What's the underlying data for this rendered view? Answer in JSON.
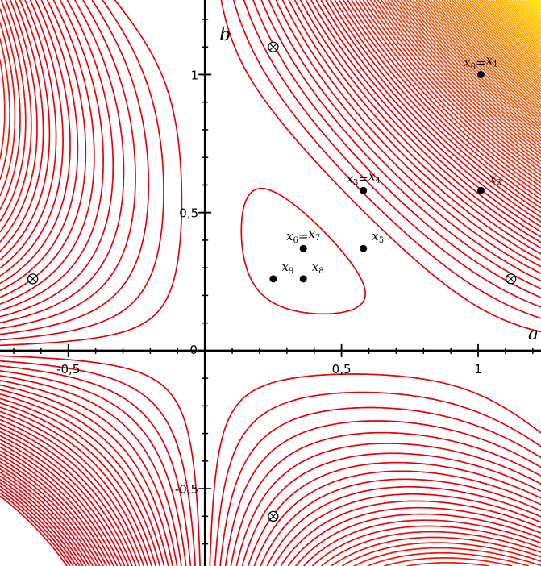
{
  "chart_data": {
    "type": "contour",
    "function": "f(a,b) = a^2 b + a b^2 - a b",
    "xlabel": "a",
    "ylabel": "b",
    "xlim": [
      -0.75,
      1.23
    ],
    "ylim": [
      -0.78,
      1.27
    ],
    "origin_label": "0",
    "x_ticks": [
      {
        "value": -0.5,
        "label": "-0,5"
      },
      {
        "value": 0.5,
        "label": "0,5"
      },
      {
        "value": 1,
        "label": "1"
      }
    ],
    "y_ticks": [
      {
        "value": -0.5,
        "label": "-0,5"
      },
      {
        "value": 0.5,
        "label": "0,5"
      },
      {
        "value": 1,
        "label": "1"
      }
    ],
    "contour_levels": {
      "start": -0.9,
      "end": 2.5,
      "step": 0.025
    },
    "colors": {
      "low": "#e8000b",
      "mid": "#ff8c00",
      "high": "#ffff00"
    },
    "points": [
      {
        "id": "x0x1",
        "a": 1.01,
        "b": 1.0,
        "label": "x0=x1",
        "parts": [
          "x",
          "0",
          "=",
          "x",
          "1"
        ]
      },
      {
        "id": "x2",
        "a": 1.01,
        "b": 0.58,
        "label": "x2",
        "parts": [
          "x",
          "2"
        ]
      },
      {
        "id": "x3x4",
        "a": 0.58,
        "b": 0.58,
        "label": "x3=x4",
        "parts": [
          "x",
          "3",
          "=",
          "x",
          "4"
        ]
      },
      {
        "id": "x5",
        "a": 0.58,
        "b": 0.37,
        "label": "x5",
        "parts": [
          "x",
          "5"
        ]
      },
      {
        "id": "x6x7",
        "a": 0.36,
        "b": 0.37,
        "label": "x6=x7",
        "parts": [
          "x",
          "6",
          "=",
          "x",
          "7"
        ]
      },
      {
        "id": "x8",
        "a": 0.36,
        "b": 0.26,
        "label": "x8",
        "parts": [
          "x",
          "8"
        ]
      },
      {
        "id": "x9",
        "a": 0.25,
        "b": 0.26,
        "label": "x9",
        "parts": [
          "x",
          "9"
        ]
      }
    ],
    "saddle_points": [
      {
        "a": 0.25,
        "b": 1.1
      },
      {
        "a": -0.63,
        "b": 0.26
      },
      {
        "a": 1.12,
        "b": 0.26
      },
      {
        "a": 0.25,
        "b": -0.6
      }
    ]
  }
}
